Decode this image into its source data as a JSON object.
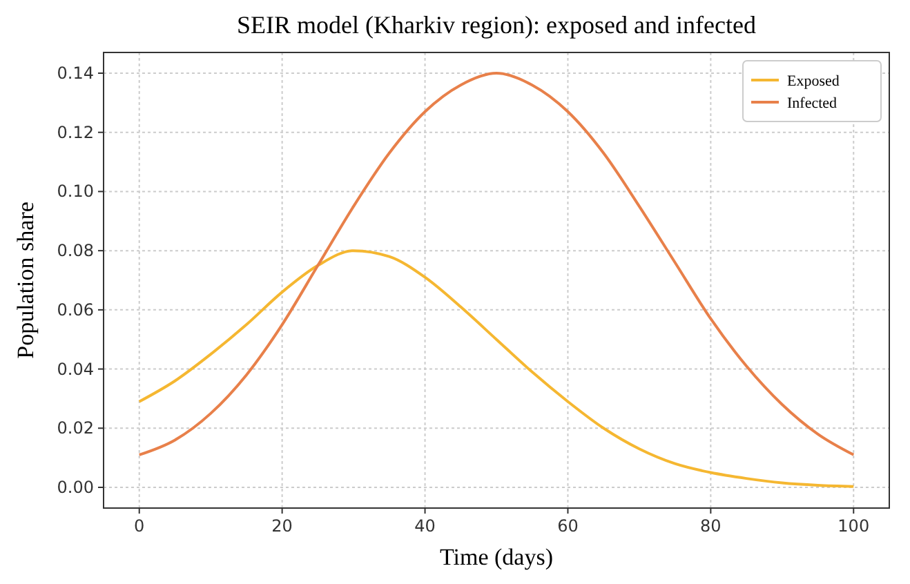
{
  "chart_data": {
    "type": "line",
    "title": "SEIR model (Kharkiv region): exposed and infected",
    "xlabel": "Time (days)",
    "ylabel": "Population share",
    "x": [
      0,
      5,
      10,
      15,
      20,
      25,
      30,
      35,
      40,
      45,
      50,
      55,
      60,
      65,
      70,
      75,
      80,
      85,
      90,
      95,
      100
    ],
    "series": [
      {
        "name": "Exposed",
        "color": "#f5b731",
        "values": [
          0.029,
          0.036,
          0.045,
          0.055,
          0.066,
          0.075,
          0.08,
          0.078,
          0.071,
          0.061,
          0.05,
          0.039,
          0.029,
          0.02,
          0.013,
          0.008,
          0.005,
          0.003,
          0.0015,
          0.0007,
          0.0003
        ]
      },
      {
        "name": "Infected",
        "color": "#e8804a",
        "values": [
          0.011,
          0.016,
          0.025,
          0.038,
          0.055,
          0.075,
          0.095,
          0.113,
          0.127,
          0.136,
          0.14,
          0.136,
          0.127,
          0.113,
          0.095,
          0.076,
          0.057,
          0.041,
          0.028,
          0.018,
          0.011
        ]
      }
    ],
    "xlim": [
      -5,
      105
    ],
    "xticks": [
      0,
      20,
      40,
      60,
      80,
      100
    ],
    "ylim": [
      -0.007,
      0.147
    ],
    "yticks": [
      {
        "value": 0,
        "label": "0.00"
      },
      {
        "value": 0.02,
        "label": "0.02"
      },
      {
        "value": 0.04,
        "label": "0.04"
      },
      {
        "value": 0.06,
        "label": "0.06"
      },
      {
        "value": 0.08,
        "label": "0.08"
      },
      {
        "value": 0.1,
        "label": "0.10"
      },
      {
        "value": 0.12,
        "label": "0.12"
      },
      {
        "value": 0.14,
        "label": "0.14"
      }
    ],
    "grid": true,
    "legend": "top right",
    "marker": "none",
    "line_style": "solid"
  }
}
